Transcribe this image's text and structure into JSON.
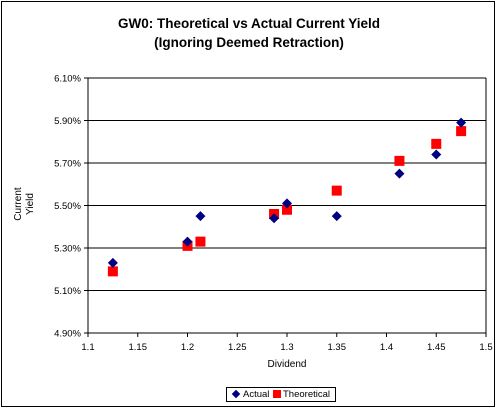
{
  "chart_data": {
    "type": "scatter",
    "title_lines": [
      "GW0: Theoretical vs Actual Current Yield",
      "(Ignoring Deemed Retraction)"
    ],
    "xlabel": "Dividend",
    "ylabel_lines": [
      "Current",
      "Yield"
    ],
    "xlim": [
      1.1,
      1.5
    ],
    "ylim": [
      4.9,
      6.1
    ],
    "x_ticks": [
      "1.1",
      "1.15",
      "1.2",
      "1.25",
      "1.3",
      "1.35",
      "1.4",
      "1.45",
      "1.5"
    ],
    "y_ticks": [
      "4.90%",
      "5.10%",
      "5.30%",
      "5.50%",
      "5.70%",
      "5.90%",
      "6.10%"
    ],
    "y_gridlines": true,
    "legend_position": "bottom",
    "series": [
      {
        "name": "Actual",
        "marker": "diamond",
        "color": "#000080",
        "points": [
          [
            1.125,
            5.23
          ],
          [
            1.2,
            5.33
          ],
          [
            1.213,
            5.45
          ],
          [
            1.287,
            5.44
          ],
          [
            1.3,
            5.51
          ],
          [
            1.35,
            5.45
          ],
          [
            1.413,
            5.65
          ],
          [
            1.45,
            5.74
          ],
          [
            1.475,
            5.89
          ]
        ]
      },
      {
        "name": "Theoretical",
        "marker": "square",
        "color": "#ff0000",
        "points": [
          [
            1.125,
            5.19
          ],
          [
            1.2,
            5.31
          ],
          [
            1.213,
            5.33
          ],
          [
            1.287,
            5.46
          ],
          [
            1.3,
            5.48
          ],
          [
            1.35,
            5.57
          ],
          [
            1.413,
            5.71
          ],
          [
            1.45,
            5.79
          ],
          [
            1.475,
            5.85
          ]
        ]
      }
    ]
  }
}
